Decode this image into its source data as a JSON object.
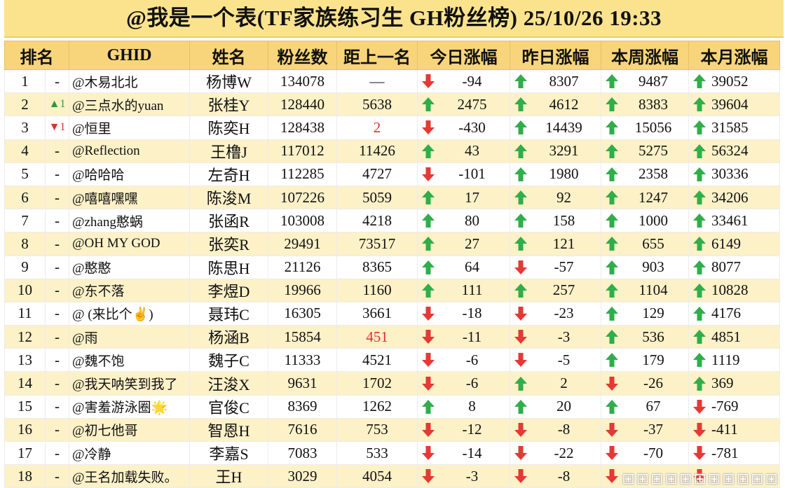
{
  "title": "@我是一个表(TF家族练习生 GH粉丝榜)  25/10/26 19:33",
  "headers": [
    "排名",
    "GHID",
    "姓名",
    "粉丝数",
    "距上一名",
    "今日涨幅",
    "昨日涨幅",
    "本周涨幅",
    "本月涨幅"
  ],
  "colors": {
    "up": "#2fae4a",
    "down": "#e53935",
    "header": "#f8d57a",
    "title": "#fbe38e",
    "band": "#fdf1c8"
  },
  "rows": [
    {
      "rank": "1",
      "move": "-",
      "move_dir": "none",
      "ghid": "@木易北北",
      "name": "杨博W",
      "fans": "134078",
      "gap": "—",
      "gap_red": false,
      "today": {
        "dir": "down",
        "v": "-94"
      },
      "yesterday": {
        "dir": "up",
        "v": "8307"
      },
      "week": {
        "dir": "up",
        "v": "9487"
      },
      "month": {
        "dir": "up",
        "v": "39052"
      }
    },
    {
      "rank": "2",
      "move": "▲1",
      "move_dir": "up",
      "ghid": "@三点水的yuan",
      "name": "张桂Y",
      "fans": "128440",
      "gap": "5638",
      "gap_red": false,
      "today": {
        "dir": "up",
        "v": "2475"
      },
      "yesterday": {
        "dir": "up",
        "v": "4612"
      },
      "week": {
        "dir": "up",
        "v": "8383"
      },
      "month": {
        "dir": "up",
        "v": "39604"
      }
    },
    {
      "rank": "3",
      "move": "▼1",
      "move_dir": "down",
      "ghid": "@恒里",
      "name": "陈奕H",
      "fans": "128438",
      "gap": "2",
      "gap_red": true,
      "today": {
        "dir": "down",
        "v": "-430"
      },
      "yesterday": {
        "dir": "up",
        "v": "14439"
      },
      "week": {
        "dir": "up",
        "v": "15056"
      },
      "month": {
        "dir": "up",
        "v": "31585"
      }
    },
    {
      "rank": "4",
      "move": "-",
      "move_dir": "none",
      "ghid": "@Reflection",
      "name": "王橹J",
      "fans": "117012",
      "gap": "11426",
      "gap_red": false,
      "today": {
        "dir": "up",
        "v": "43"
      },
      "yesterday": {
        "dir": "up",
        "v": "3291"
      },
      "week": {
        "dir": "up",
        "v": "5275"
      },
      "month": {
        "dir": "up",
        "v": "56324"
      }
    },
    {
      "rank": "5",
      "move": "-",
      "move_dir": "none",
      "ghid": "@哈哈哈",
      "name": "左奇H",
      "fans": "112285",
      "gap": "4727",
      "gap_red": false,
      "today": {
        "dir": "down",
        "v": "-101"
      },
      "yesterday": {
        "dir": "up",
        "v": "1980"
      },
      "week": {
        "dir": "up",
        "v": "2358"
      },
      "month": {
        "dir": "up",
        "v": "30336"
      }
    },
    {
      "rank": "6",
      "move": "-",
      "move_dir": "none",
      "ghid": "@嘻嘻嘿嘿",
      "name": "陈浚M",
      "fans": "107226",
      "gap": "5059",
      "gap_red": false,
      "today": {
        "dir": "up",
        "v": "17"
      },
      "yesterday": {
        "dir": "up",
        "v": "92"
      },
      "week": {
        "dir": "up",
        "v": "1247"
      },
      "month": {
        "dir": "up",
        "v": "34206"
      }
    },
    {
      "rank": "7",
      "move": "-",
      "move_dir": "none",
      "ghid": "@zhang憨蜗",
      "name": "张函R",
      "fans": "103008",
      "gap": "4218",
      "gap_red": false,
      "today": {
        "dir": "up",
        "v": "80"
      },
      "yesterday": {
        "dir": "up",
        "v": "158"
      },
      "week": {
        "dir": "up",
        "v": "1000"
      },
      "month": {
        "dir": "up",
        "v": "33461"
      }
    },
    {
      "rank": "8",
      "move": "-",
      "move_dir": "none",
      "ghid": "@OH MY GOD",
      "name": "张奕R",
      "fans": "29491",
      "gap": "73517",
      "gap_red": false,
      "today": {
        "dir": "up",
        "v": "27"
      },
      "yesterday": {
        "dir": "up",
        "v": "121"
      },
      "week": {
        "dir": "up",
        "v": "655"
      },
      "month": {
        "dir": "up",
        "v": "6149"
      }
    },
    {
      "rank": "9",
      "move": "-",
      "move_dir": "none",
      "ghid": "@憨憨",
      "name": "陈思H",
      "fans": "21126",
      "gap": "8365",
      "gap_red": false,
      "today": {
        "dir": "up",
        "v": "64"
      },
      "yesterday": {
        "dir": "down",
        "v": "-57"
      },
      "week": {
        "dir": "up",
        "v": "903"
      },
      "month": {
        "dir": "up",
        "v": "8077"
      }
    },
    {
      "rank": "10",
      "move": "-",
      "move_dir": "none",
      "ghid": "@东不落",
      "name": "李煜D",
      "fans": "19966",
      "gap": "1160",
      "gap_red": false,
      "today": {
        "dir": "up",
        "v": "111"
      },
      "yesterday": {
        "dir": "up",
        "v": "257"
      },
      "week": {
        "dir": "up",
        "v": "1104"
      },
      "month": {
        "dir": "up",
        "v": "10828"
      }
    },
    {
      "rank": "11",
      "move": "-",
      "move_dir": "none",
      "ghid": "@ (来比个✌)",
      "name": "聂玮C",
      "fans": "16305",
      "gap": "3661",
      "gap_red": false,
      "today": {
        "dir": "down",
        "v": "-18"
      },
      "yesterday": {
        "dir": "down",
        "v": "-23"
      },
      "week": {
        "dir": "up",
        "v": "129"
      },
      "month": {
        "dir": "up",
        "v": "4176"
      }
    },
    {
      "rank": "12",
      "move": "-",
      "move_dir": "none",
      "ghid": "@雨",
      "name": "杨涵B",
      "fans": "15854",
      "gap": "451",
      "gap_red": true,
      "today": {
        "dir": "down",
        "v": "-11"
      },
      "yesterday": {
        "dir": "down",
        "v": "-3"
      },
      "week": {
        "dir": "up",
        "v": "536"
      },
      "month": {
        "dir": "up",
        "v": "4851"
      }
    },
    {
      "rank": "13",
      "move": "-",
      "move_dir": "none",
      "ghid": "@魏不饱",
      "name": "魏子C",
      "fans": "11333",
      "gap": "4521",
      "gap_red": false,
      "today": {
        "dir": "down",
        "v": "-6"
      },
      "yesterday": {
        "dir": "down",
        "v": "-5"
      },
      "week": {
        "dir": "up",
        "v": "179"
      },
      "month": {
        "dir": "up",
        "v": "1119"
      }
    },
    {
      "rank": "14",
      "move": "-",
      "move_dir": "none",
      "ghid": "@我天呐笑到我了",
      "name": "汪浚X",
      "fans": "9631",
      "gap": "1702",
      "gap_red": false,
      "today": {
        "dir": "down",
        "v": "-6"
      },
      "yesterday": {
        "dir": "up",
        "v": "2"
      },
      "week": {
        "dir": "down",
        "v": "-26"
      },
      "month": {
        "dir": "up",
        "v": "369"
      }
    },
    {
      "rank": "15",
      "move": "-",
      "move_dir": "none",
      "ghid": "@害羞游泳圈🌟",
      "name": "官俊C",
      "fans": "8369",
      "gap": "1262",
      "gap_red": false,
      "today": {
        "dir": "up",
        "v": "8"
      },
      "yesterday": {
        "dir": "up",
        "v": "20"
      },
      "week": {
        "dir": "up",
        "v": "67"
      },
      "month": {
        "dir": "down",
        "v": "-769"
      }
    },
    {
      "rank": "16",
      "move": "-",
      "move_dir": "none",
      "ghid": "@初七他哥",
      "name": "智恩H",
      "fans": "7616",
      "gap": "753",
      "gap_red": false,
      "today": {
        "dir": "down",
        "v": "-12"
      },
      "yesterday": {
        "dir": "down",
        "v": "-8"
      },
      "week": {
        "dir": "down",
        "v": "-37"
      },
      "month": {
        "dir": "down",
        "v": "-411"
      }
    },
    {
      "rank": "17",
      "move": "-",
      "move_dir": "none",
      "ghid": "@冷静",
      "name": "李嘉S",
      "fans": "7083",
      "gap": "533",
      "gap_red": false,
      "today": {
        "dir": "down",
        "v": "-14"
      },
      "yesterday": {
        "dir": "down",
        "v": "-22"
      },
      "week": {
        "dir": "down",
        "v": "-70"
      },
      "month": {
        "dir": "down",
        "v": "-781"
      }
    },
    {
      "rank": "18",
      "move": "-",
      "move_dir": "none",
      "ghid": "@王名加载失败。",
      "name": "王H",
      "fans": "3029",
      "gap": "4054",
      "gap_red": false,
      "today": {
        "dir": "down",
        "v": "-3"
      },
      "yesterday": {
        "dir": "down",
        "v": "-8"
      },
      "week": {
        "dir": "down",
        "v": ""
      },
      "month": {
        "dir": "down",
        "v": ""
      }
    }
  ]
}
